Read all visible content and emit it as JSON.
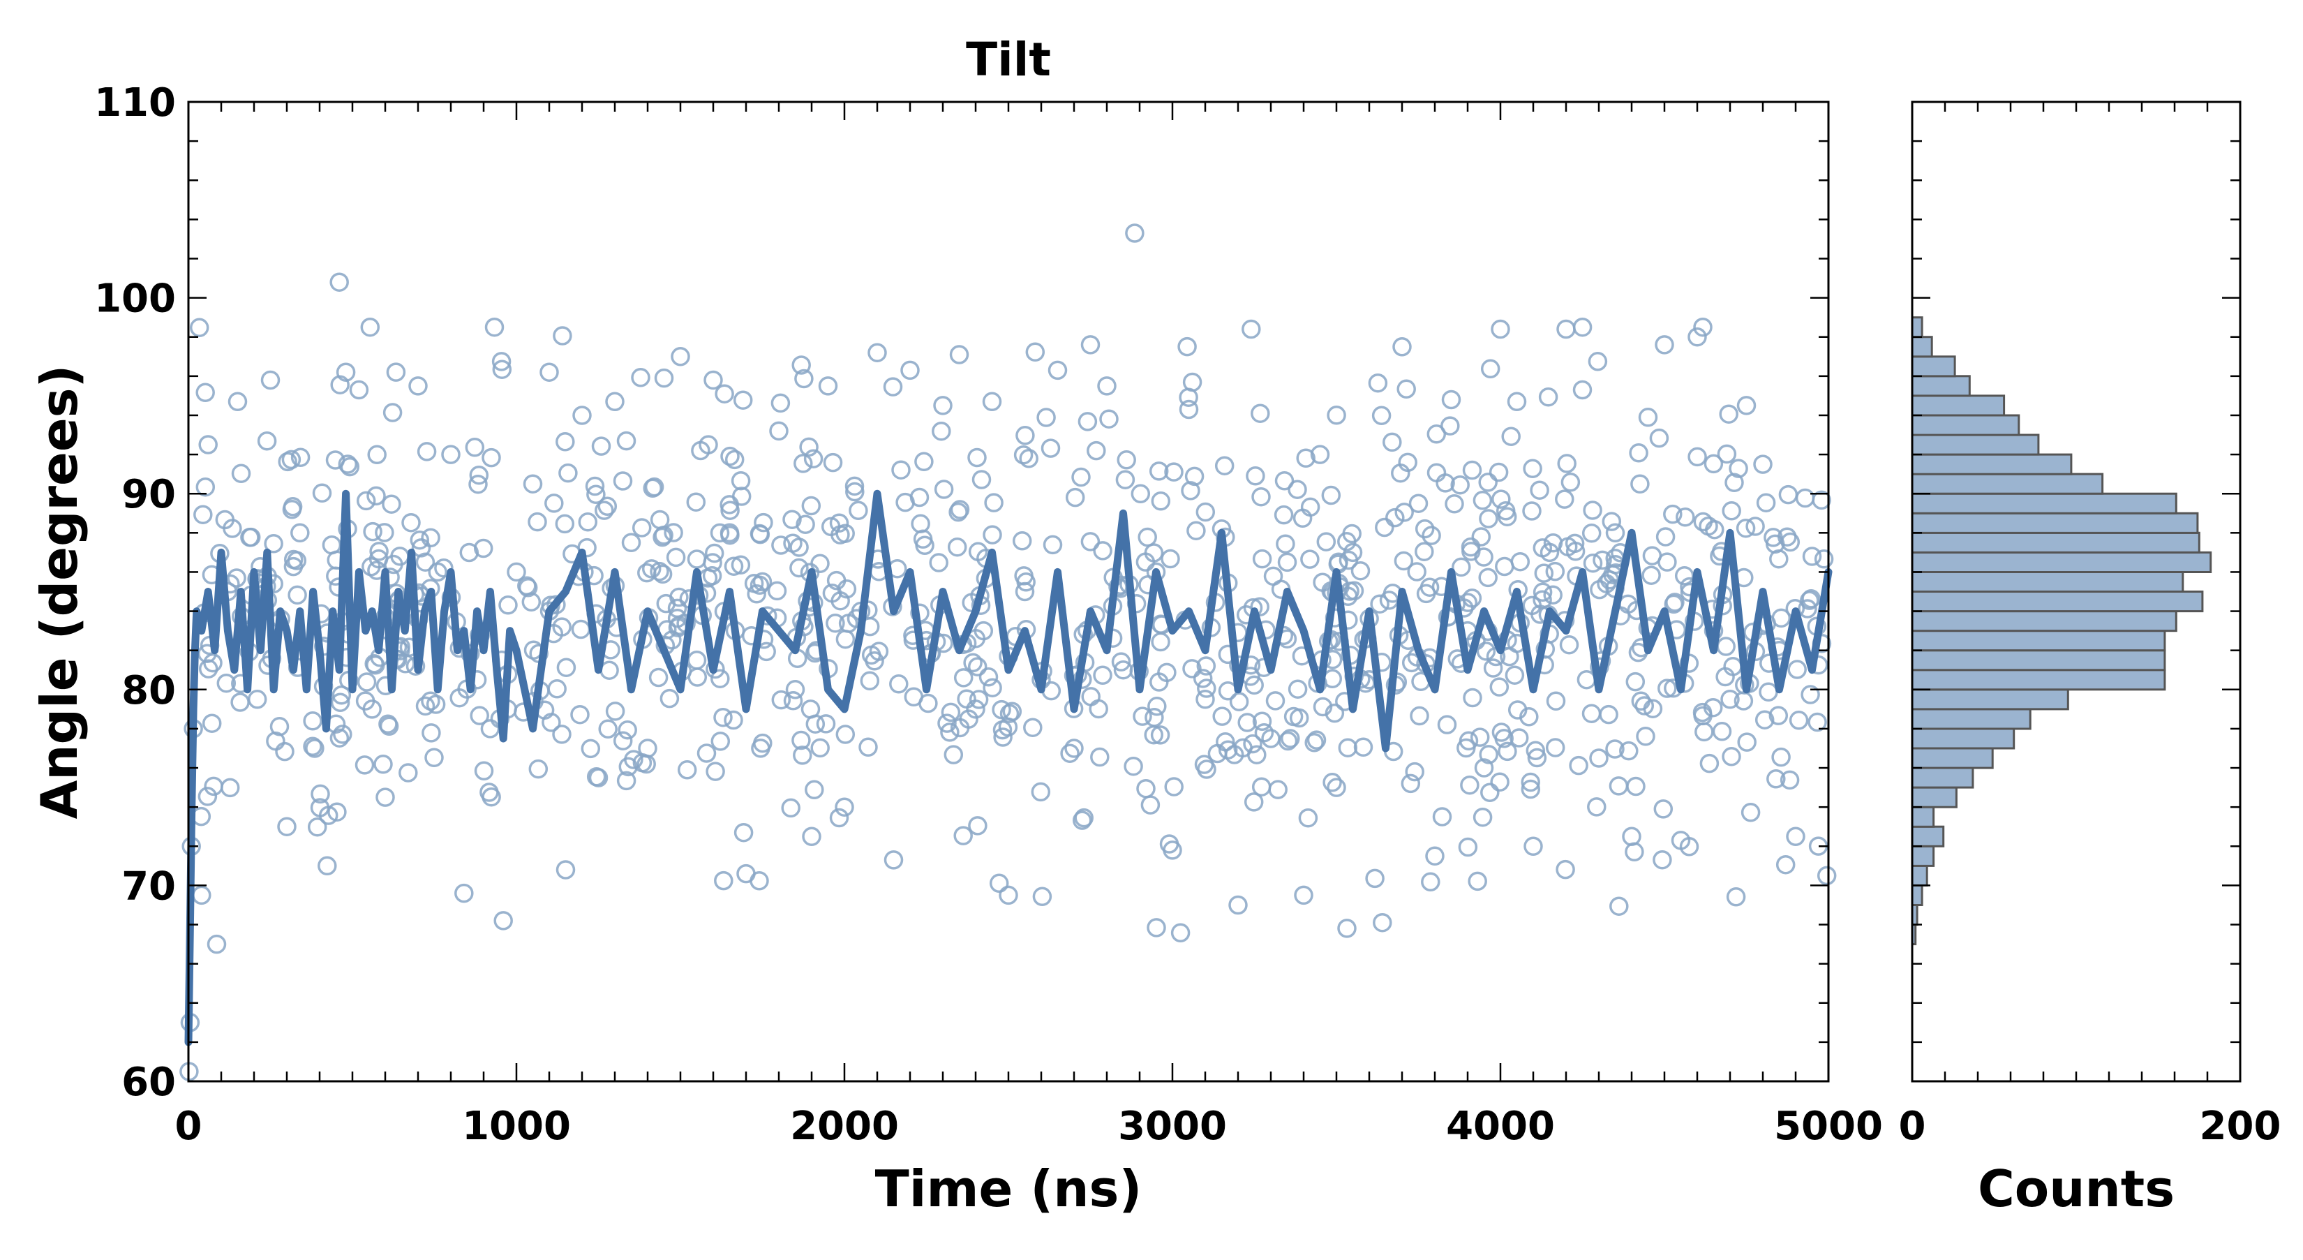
{
  "chart_data": [
    {
      "type": "scatter",
      "title": "Tilt",
      "xlabel": "Time (ns)",
      "ylabel": "Angle (degrees)",
      "xlim": [
        0,
        5000
      ],
      "ylim": [
        60,
        110
      ],
      "xticks": [
        "0",
        "1000",
        "2000",
        "3000",
        "4000",
        "5000"
      ],
      "yticks": [
        "60",
        "70",
        "80",
        "90",
        "100",
        "110"
      ],
      "grid": false,
      "legend": "none",
      "series": [
        {
          "kind": "scatter",
          "color": "#88a6c6",
          "marker": "open-circle",
          "summary": {
            "center": 83.5,
            "spread": 5.5,
            "min": 60.5,
            "max": 103.3,
            "count": 1000
          },
          "x": [
            2,
            5,
            9,
            15,
            40,
            60,
            120,
            150,
            210,
            250,
            300,
            340,
            385,
            423,
            460,
            480,
            520,
            560,
            600,
            640,
            700,
            760,
            800,
            840,
            880,
            920,
            960,
            1000,
            1050,
            1100,
            1150,
            1200,
            1250,
            1300,
            1350,
            1400,
            1450,
            1500,
            1550,
            1600,
            1650,
            1700,
            1750,
            1800,
            1850,
            1900,
            1950,
            2000,
            2050,
            2100,
            2150,
            2200,
            2250,
            2300,
            2350,
            2400,
            2450,
            2500,
            2550,
            2600,
            2650,
            2700,
            2750,
            2800,
            2850,
            2885,
            2950,
            3000,
            3050,
            3100,
            3150,
            3200,
            3240,
            3300,
            3350,
            3400,
            3450,
            3500,
            3550,
            3600,
            3640,
            3700,
            3750,
            3800,
            3850,
            3900,
            3950,
            4000,
            4050,
            4100,
            4150,
            4200,
            4250,
            4300,
            4350,
            4400,
            4450,
            4500,
            4550,
            4600,
            4650,
            4700,
            4750,
            4800,
            4850,
            4900,
            4950,
            4995
          ],
          "y": [
            60.5,
            63,
            72,
            78,
            69.5,
            92.5,
            85,
            94.7,
            79.5,
            95.8,
            73,
            88,
            77,
            71,
            100.8,
            96.2,
            95.3,
            79,
            74.5,
            84.5,
            95.5,
            86,
            92,
            69.6,
            80.5,
            78,
            68.2,
            86,
            90.5,
            96.2,
            70.8,
            94,
            75.5,
            94.7,
            87.5,
            77,
            95.9,
            97,
            81.5,
            95.8,
            88,
            70.6,
            85.5,
            93.2,
            80,
            72.5,
            95.5,
            74,
            84,
            97.2,
            71.3,
            96.3,
            82.5,
            94.5,
            97.1,
            79,
            94.7,
            69.5,
            85,
            80.5,
            96.3,
            77,
            97.6,
            95.5,
            81,
            103.3,
            86,
            71.8,
            94.3,
            79.5,
            88.2,
            69,
            98.4,
            77.5,
            86.5,
            69.5,
            92,
            75,
            87,
            80.5,
            68.1,
            97.5,
            89.5,
            71.5,
            94.8,
            83,
            76,
            98.4,
            94.7,
            72,
            87,
            98.4,
            95.3,
            76.5,
            88,
            72.5,
            93.9,
            97.6,
            72.3,
            98,
            83,
            79.5,
            94.5,
            91.5,
            82,
            72.5,
            86.8,
            70.5
          ]
        },
        {
          "kind": "line",
          "color": "#4472a8",
          "x": [
            0,
            5,
            10,
            15,
            20,
            25,
            40,
            60,
            80,
            100,
            120,
            140,
            160,
            180,
            200,
            220,
            240,
            260,
            280,
            300,
            320,
            340,
            360,
            380,
            400,
            420,
            440,
            460,
            480,
            500,
            520,
            540,
            560,
            580,
            600,
            620,
            640,
            660,
            680,
            700,
            720,
            740,
            760,
            780,
            800,
            820,
            840,
            860,
            880,
            900,
            920,
            940,
            960,
            980,
            1000,
            1050,
            1100,
            1150,
            1200,
            1250,
            1300,
            1350,
            1400,
            1450,
            1500,
            1550,
            1600,
            1650,
            1700,
            1750,
            1800,
            1850,
            1900,
            1950,
            2000,
            2050,
            2100,
            2150,
            2200,
            2250,
            2300,
            2350,
            2400,
            2450,
            2500,
            2550,
            2600,
            2650,
            2700,
            2750,
            2800,
            2850,
            2900,
            2950,
            3000,
            3050,
            3100,
            3150,
            3200,
            3250,
            3300,
            3350,
            3400,
            3450,
            3500,
            3550,
            3600,
            3650,
            3700,
            3750,
            3800,
            3850,
            3900,
            3950,
            4000,
            4050,
            4100,
            4150,
            4200,
            4250,
            4300,
            4350,
            4400,
            4450,
            4500,
            4550,
            4600,
            4650,
            4700,
            4750,
            4800,
            4850,
            4900,
            4950,
            5000
          ],
          "y": [
            62,
            68,
            74,
            79,
            82,
            84,
            83,
            85,
            82,
            87,
            83,
            81,
            85,
            80,
            86,
            82,
            87,
            80,
            84,
            83,
            81,
            84,
            80,
            85,
            82,
            78,
            84,
            81,
            90,
            80,
            86,
            83,
            84,
            82,
            86,
            80,
            85,
            83,
            87,
            81,
            84,
            85,
            80,
            84,
            86,
            82,
            83,
            80,
            84,
            82,
            85,
            81,
            77.5,
            83,
            82,
            78,
            84,
            85,
            87,
            81,
            86,
            80,
            84,
            82,
            80,
            86,
            81,
            85,
            79,
            84,
            83,
            82,
            86,
            80,
            79,
            83,
            90,
            84,
            86,
            80,
            85,
            82,
            84,
            87,
            81,
            83,
            80,
            86,
            79,
            84,
            82,
            89,
            80,
            86,
            83,
            84,
            82,
            88,
            80,
            84,
            81,
            85,
            83,
            80,
            86,
            79,
            84,
            77,
            85,
            82,
            80,
            86,
            81,
            84,
            82,
            85,
            80,
            84,
            83,
            86,
            80,
            84,
            88,
            82,
            84,
            80,
            86,
            82,
            88,
            80,
            85,
            80,
            84,
            81,
            86
          ]
        }
      ]
    },
    {
      "type": "bar",
      "orientation": "horizontal",
      "xlabel": "Counts",
      "ylabel": "",
      "xlim": [
        0,
        200
      ],
      "ylim": [
        60,
        110
      ],
      "xticks": [
        "0",
        "200"
      ],
      "grid": false,
      "legend": "none",
      "bar_color": "#9bb4d0",
      "bar_edge": "#555555",
      "bin_width": 1,
      "bin_starts": [
        67,
        68,
        69,
        70,
        71,
        72,
        73,
        74,
        75,
        76,
        77,
        78,
        79,
        80,
        81,
        82,
        83,
        84,
        85,
        86,
        87,
        88,
        89,
        90,
        91,
        92,
        93,
        94,
        95,
        96,
        97,
        98
      ],
      "values": [
        2,
        3,
        6,
        9,
        13,
        19,
        13,
        27,
        37,
        49,
        62,
        72,
        95,
        154,
        154,
        154,
        161,
        177,
        165,
        182,
        175,
        174,
        161,
        116,
        97,
        77,
        65,
        56,
        35,
        26,
        12,
        6
      ]
    }
  ]
}
